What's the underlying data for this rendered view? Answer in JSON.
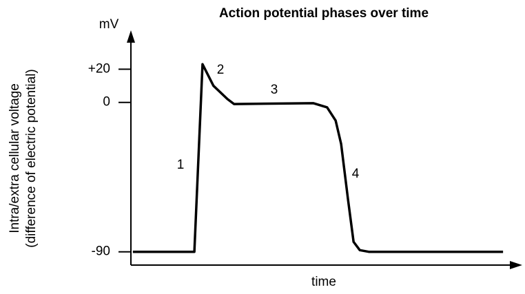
{
  "chart_data": {
    "type": "line",
    "title": "Action potential phases over time",
    "y_unit": "mV",
    "xlabel": "time",
    "ylabel": [
      "Intra/extra cellular voltage",
      "(difference of electric potential)"
    ],
    "annotations": [
      "1",
      "2",
      "3",
      "4"
    ],
    "x": [
      0.5,
      16.3,
      18.4,
      21.2,
      24.8,
      26.5,
      46.9,
      50.4,
      52.6,
      54,
      55.8,
      57.2,
      58.8,
      61.1,
      95.6
    ],
    "series": [
      {
        "color": "#000000",
        "values": [
          -90,
          -90,
          23,
          10,
          2,
          -1,
          -0.5,
          -3,
          -11,
          -25,
          -59,
          -84,
          -89,
          -90,
          -90
        ]
      }
    ],
    "xlim": [
      0,
      100
    ],
    "ylim": [
      -98,
      43
    ],
    "yticks": [
      {
        "value": 20,
        "label": "+20"
      },
      0,
      -90
    ]
  }
}
